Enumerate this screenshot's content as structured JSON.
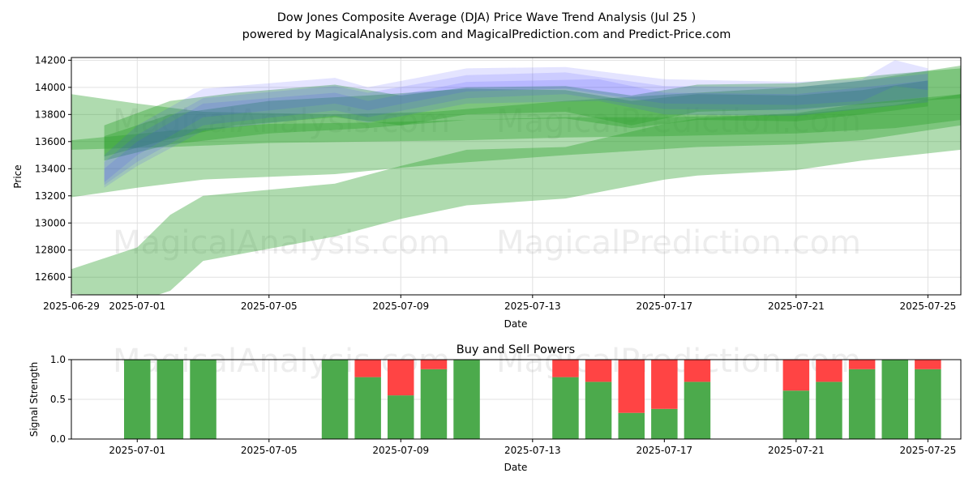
{
  "title_line1": "Dow Jones Composite Average (DJA) Price Wave Trend Analysis (Jul 25 )",
  "title_line2": "powered by MagicalAnalysis.com and MagicalPrediction.com and Predict-Price.com",
  "watermarks": [
    "MagicalAnalysis.com",
    "MagicalPrediction.com"
  ],
  "colors": {
    "green_band": "#2ca02c",
    "blue_band": "#4040ff",
    "buy": "#4caa4c",
    "sell": "#ff4444",
    "grid": "#e0e0e0"
  },
  "chart_data": [
    {
      "type": "area",
      "xlabel": "Date",
      "ylabel": "Price",
      "xlim": [
        "2025-06-29",
        "2025-07-26"
      ],
      "ylim": [
        12470,
        14220
      ],
      "x_ticks": [
        "2025-06-29",
        "2025-07-01",
        "2025-07-05",
        "2025-07-09",
        "2025-07-13",
        "2025-07-17",
        "2025-07-21",
        "2025-07-25"
      ],
      "y_ticks": [
        12600,
        12800,
        13000,
        13200,
        13400,
        13600,
        13800,
        14000,
        14200
      ],
      "grid": true,
      "green_bands": [
        {
          "x": [
            "2025-06-29",
            "2025-07-01",
            "2025-07-02",
            "2025-07-03",
            "2025-07-07",
            "2025-07-09",
            "2025-07-11",
            "2025-07-14",
            "2025-07-17",
            "2025-07-18",
            "2025-07-21",
            "2025-07-23",
            "2025-07-26"
          ],
          "upper": [
            12660,
            12820,
            13060,
            13200,
            13290,
            13420,
            13540,
            13560,
            13730,
            13770,
            13810,
            13880,
            13950
          ],
          "lower": [
            12480,
            12420,
            12500,
            12720,
            12900,
            13030,
            13130,
            13180,
            13320,
            13350,
            13390,
            13460,
            13540
          ]
        },
        {
          "x": [
            "2025-06-29",
            "2025-07-01",
            "2025-07-03",
            "2025-07-07",
            "2025-07-10",
            "2025-07-14",
            "2025-07-18",
            "2025-07-21",
            "2025-07-23",
            "2025-07-26"
          ],
          "upper": [
            13950,
            13880,
            13820,
            13800,
            13820,
            13900,
            13960,
            14000,
            14050,
            14160
          ],
          "lower": [
            13190,
            13260,
            13320,
            13360,
            13430,
            13500,
            13560,
            13580,
            13610,
            13720
          ]
        },
        {
          "x": [
            "2025-06-29",
            "2025-07-02",
            "2025-07-05",
            "2025-07-08",
            "2025-07-11",
            "2025-07-14",
            "2025-07-17",
            "2025-07-21",
            "2025-07-24",
            "2025-07-26"
          ],
          "upper": [
            13610,
            13680,
            13730,
            13740,
            13760,
            13780,
            13780,
            13800,
            13870,
            13950
          ],
          "lower": [
            13540,
            13560,
            13590,
            13600,
            13610,
            13630,
            13640,
            13660,
            13700,
            13760
          ]
        },
        {
          "x": [
            "2025-06-30",
            "2025-07-02",
            "2025-07-04",
            "2025-07-07",
            "2025-07-09",
            "2025-07-11",
            "2025-07-14",
            "2025-07-16",
            "2025-07-18",
            "2025-07-21",
            "2025-07-24",
            "2025-07-26"
          ],
          "upper": [
            13720,
            13900,
            13960,
            14020,
            13940,
            14000,
            14010,
            13940,
            14020,
            14030,
            14100,
            14140
          ],
          "lower": [
            13490,
            13620,
            13720,
            13780,
            13720,
            13800,
            13820,
            13720,
            13820,
            13840,
            13890,
            13920
          ]
        },
        {
          "x": [
            "2025-06-30",
            "2025-07-02",
            "2025-07-05",
            "2025-07-08",
            "2025-07-11",
            "2025-07-14",
            "2025-07-16",
            "2025-07-18",
            "2025-07-21",
            "2025-07-23",
            "2025-07-25"
          ],
          "upper": [
            13640,
            13800,
            13900,
            13940,
            13990,
            13980,
            13900,
            13950,
            13940,
            13980,
            14050
          ],
          "lower": [
            13460,
            13580,
            13660,
            13700,
            13760,
            13770,
            13700,
            13760,
            13750,
            13800,
            13860
          ]
        }
      ],
      "blue_bands": [
        {
          "x": [
            "2025-06-30",
            "2025-07-01",
            "2025-07-03",
            "2025-07-07",
            "2025-07-08",
            "2025-07-11",
            "2025-07-14",
            "2025-07-17",
            "2025-07-21",
            "2025-07-23",
            "2025-07-24",
            "2025-07-25"
          ],
          "upper": [
            13500,
            13720,
            13990,
            14070,
            14000,
            14140,
            14150,
            14060,
            14040,
            14060,
            14200,
            14140
          ],
          "lower": [
            13300,
            13500,
            13780,
            13880,
            13830,
            13970,
            13990,
            13880,
            13870,
            13900,
            14010,
            13980
          ]
        },
        {
          "x": [
            "2025-06-30",
            "2025-07-01",
            "2025-07-03",
            "2025-07-07",
            "2025-07-08",
            "2025-07-11",
            "2025-07-14",
            "2025-07-17",
            "2025-07-21",
            "2025-07-25"
          ],
          "upper": [
            13450,
            13650,
            13920,
            14010,
            13960,
            14090,
            14110,
            14010,
            14000,
            14100
          ],
          "lower": [
            13280,
            13450,
            13720,
            13830,
            13780,
            13920,
            13950,
            13840,
            13830,
            13930
          ]
        },
        {
          "x": [
            "2025-06-30",
            "2025-07-01",
            "2025-07-03",
            "2025-07-07",
            "2025-07-08",
            "2025-07-11",
            "2025-07-15",
            "2025-07-17",
            "2025-07-21",
            "2025-07-25"
          ],
          "upper": [
            13400,
            13600,
            13880,
            13960,
            13900,
            14040,
            14060,
            13960,
            13950,
            14050
          ],
          "lower": [
            13260,
            13420,
            13680,
            13790,
            13740,
            13880,
            13900,
            13800,
            13790,
            13890
          ]
        }
      ]
    },
    {
      "type": "bar",
      "title": "Buy and Sell Powers",
      "xlabel": "Date",
      "ylabel": "Signal Strength",
      "xlim": [
        "2025-06-29",
        "2025-07-26"
      ],
      "ylim": [
        0,
        1
      ],
      "x_ticks": [
        "2025-07-01",
        "2025-07-05",
        "2025-07-09",
        "2025-07-13",
        "2025-07-17",
        "2025-07-21",
        "2025-07-25"
      ],
      "y_ticks": [
        0.0,
        0.5,
        1.0
      ],
      "series": [
        {
          "name": "Buy",
          "values": [
            1.0,
            1.0,
            1.0,
            1.0,
            0.78,
            0.55,
            0.88,
            1.0,
            0.78,
            0.72,
            0.33,
            0.38,
            0.72,
            0.61,
            0.72,
            0.88,
            1.0,
            0.88
          ]
        },
        {
          "name": "Sell",
          "values": [
            0.0,
            0.0,
            0.0,
            0.0,
            0.22,
            0.45,
            0.12,
            0.0,
            0.22,
            0.28,
            0.67,
            0.62,
            0.28,
            0.39,
            0.28,
            0.12,
            0.0,
            0.12
          ]
        }
      ],
      "categories": [
        "2025-07-01",
        "2025-07-02",
        "2025-07-03",
        "2025-07-07",
        "2025-07-08",
        "2025-07-09",
        "2025-07-10",
        "2025-07-11",
        "2025-07-14",
        "2025-07-15",
        "2025-07-16",
        "2025-07-17",
        "2025-07-18",
        "2025-07-21",
        "2025-07-22",
        "2025-07-23",
        "2025-07-24",
        "2025-07-25"
      ]
    }
  ]
}
